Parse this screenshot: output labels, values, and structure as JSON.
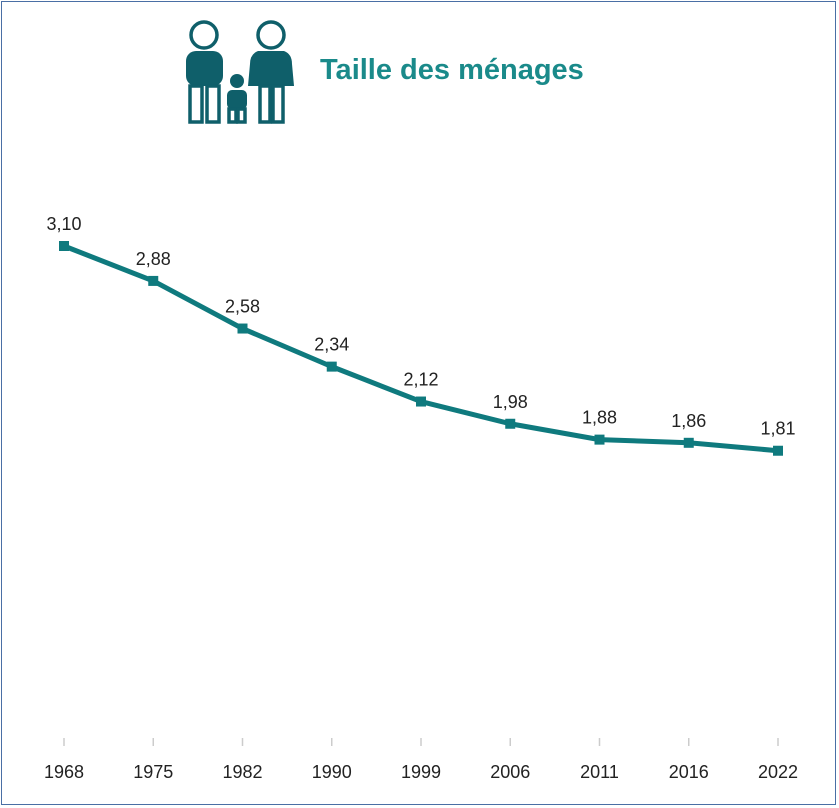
{
  "header": {
    "title": "Taille des ménages",
    "icon": "family-icon"
  },
  "colors": {
    "accent": "#0f7a7e",
    "title": "#1a8a8a",
    "icon": "#0f5f6a",
    "border": "#4a6fa5",
    "axis": "#cccccc"
  },
  "chart_data": {
    "type": "line",
    "title": "Taille des ménages",
    "xlabel": "",
    "ylabel": "",
    "categories": [
      "1968",
      "1975",
      "1982",
      "1990",
      "1999",
      "2006",
      "2011",
      "2016",
      "2022"
    ],
    "labels": [
      "3,10",
      "2,88",
      "2,58",
      "2,34",
      "2,12",
      "1,98",
      "1,88",
      "1,86",
      "1,81"
    ],
    "values": [
      3.1,
      2.88,
      2.58,
      2.34,
      2.12,
      1.98,
      1.88,
      1.86,
      1.81
    ],
    "ylim": [
      0,
      3.1
    ],
    "grid": false,
    "legend": "none"
  }
}
